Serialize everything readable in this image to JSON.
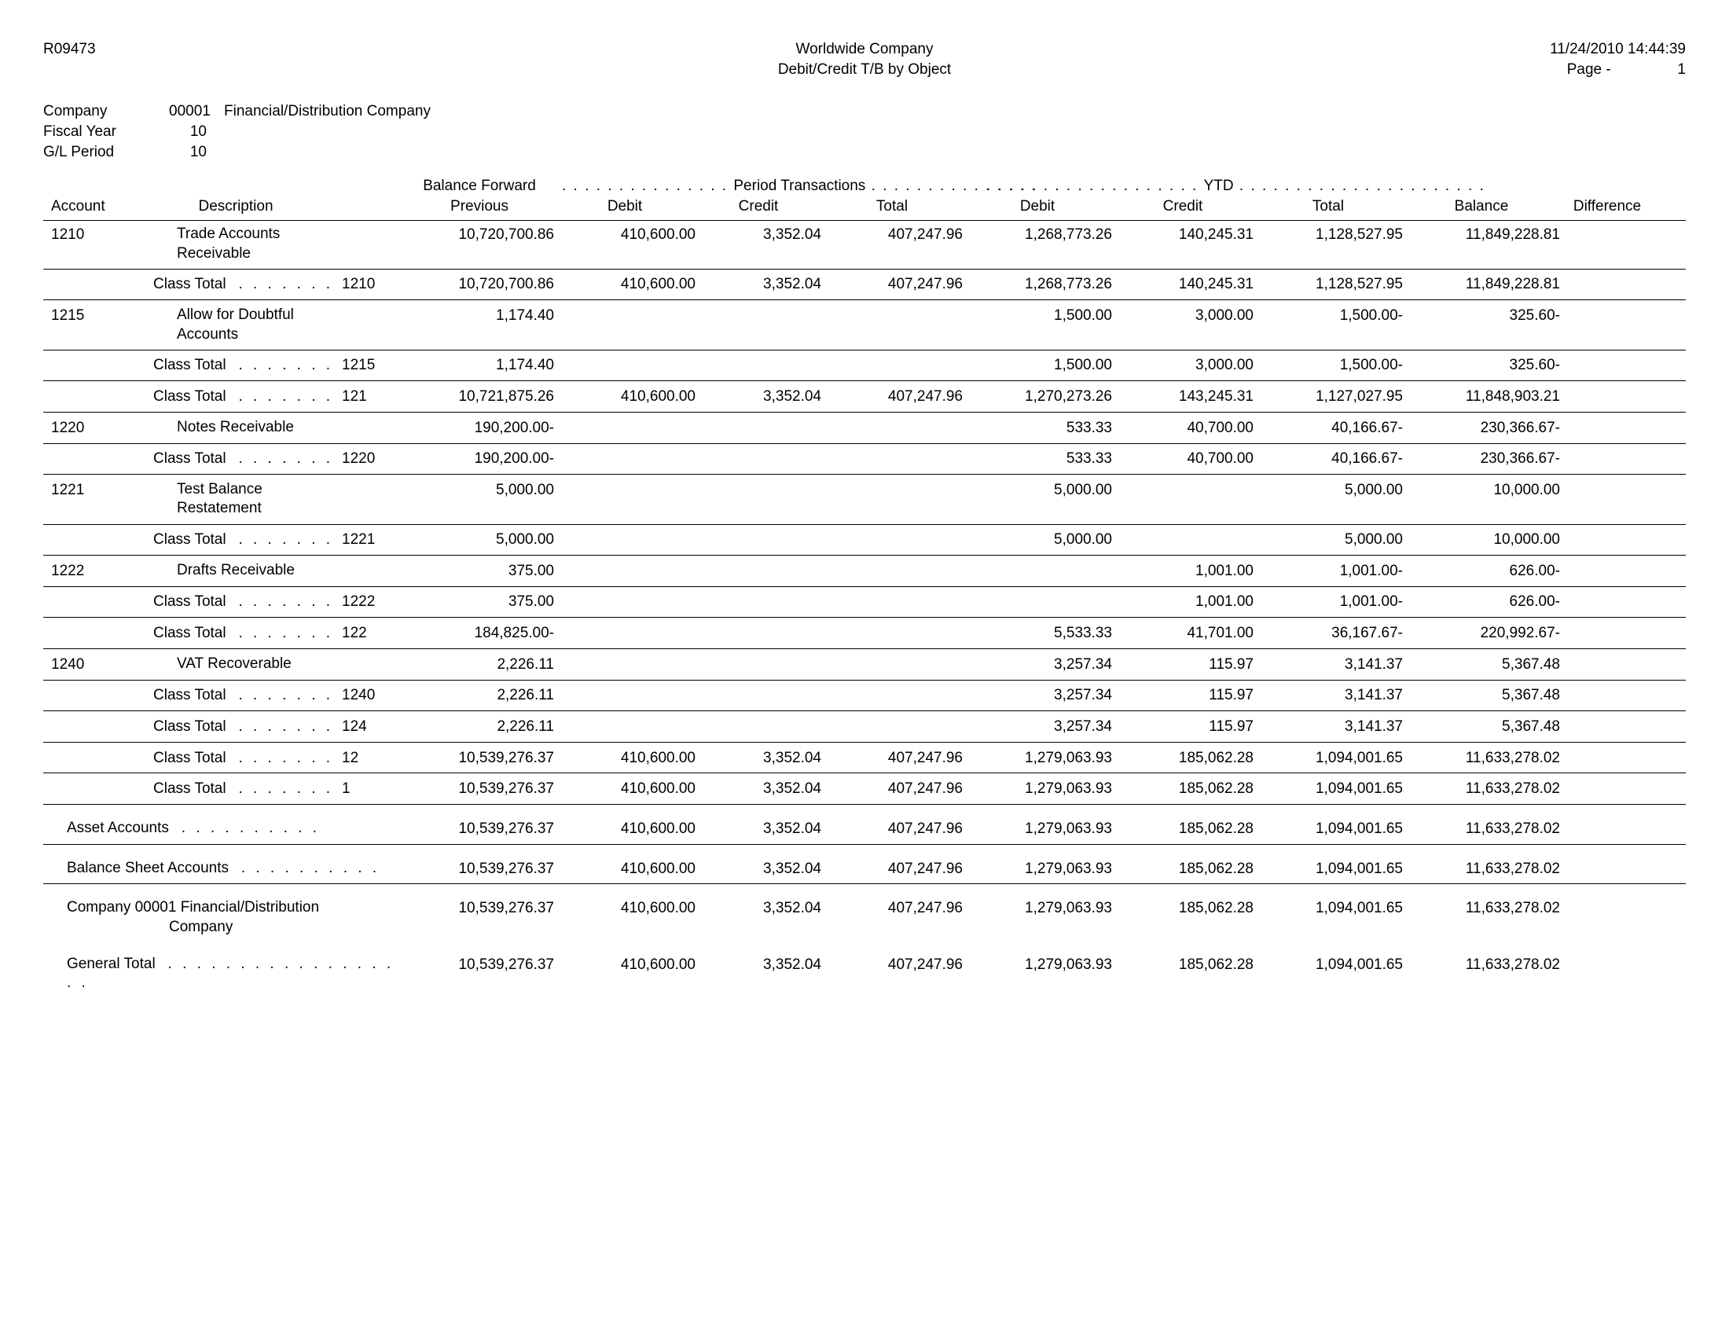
{
  "report_id": "R09473",
  "header_title_1": "Worldwide Company",
  "header_title_2": "Debit/Credit T/B by Object",
  "timestamp": "11/24/2010 14:44:39",
  "page_label": "Page -",
  "page_number": "1",
  "company_label": "Company",
  "company_code": "00001",
  "company_name": "Financial/Distribution Company",
  "fiscal_year_label": "Fiscal Year",
  "fiscal_year": "10",
  "gl_period_label": "G/L Period",
  "gl_period": "10",
  "group_balance_forward": "Balance Forward",
  "group_period": "Period Transactions",
  "group_ytd": "YTD",
  "col_account": "Account",
  "col_description": "Description",
  "col_previous": "Previous",
  "col_debit": "Debit",
  "col_credit": "Credit",
  "col_total": "Total",
  "col_balance": "Balance",
  "col_difference": "Difference",
  "class_total_label": "Class Total",
  "class_total_dots": ". . . . . . .",
  "rows": [
    {
      "type": "detail",
      "account": "1210",
      "desc1": "Trade Accounts",
      "desc2": "Receivable",
      "prev": "10,720,700.86",
      "pd": "410,600.00",
      "pc": "3,352.04",
      "pt": "407,247.96",
      "yd": "1,268,773.26",
      "yc": "140,245.31",
      "yt": "1,128,527.95",
      "bal": "11,849,228.81"
    },
    {
      "type": "class",
      "code": "1210",
      "prev": "10,720,700.86",
      "pd": "410,600.00",
      "pc": "3,352.04",
      "pt": "407,247.96",
      "yd": "1,268,773.26",
      "yc": "140,245.31",
      "yt": "1,128,527.95",
      "bal": "11,849,228.81",
      "sep": "both"
    },
    {
      "type": "detail",
      "account": "1215",
      "desc1": "Allow for Doubtful",
      "desc2": "Accounts",
      "prev": "1,174.40",
      "pd": "",
      "pc": "",
      "pt": "",
      "yd": "1,500.00",
      "yc": "3,000.00",
      "yt": "1,500.00-",
      "bal": "325.60-"
    },
    {
      "type": "class",
      "code": "1215",
      "prev": "1,174.40",
      "pd": "",
      "pc": "",
      "pt": "",
      "yd": "1,500.00",
      "yc": "3,000.00",
      "yt": "1,500.00-",
      "bal": "325.60-",
      "sep": "both"
    },
    {
      "type": "class",
      "code": "121",
      "prev": "10,721,875.26",
      "pd": "410,600.00",
      "pc": "3,352.04",
      "pt": "407,247.96",
      "yd": "1,270,273.26",
      "yc": "143,245.31",
      "yt": "1,127,027.95",
      "bal": "11,848,903.21",
      "sep": "bot"
    },
    {
      "type": "detail",
      "account": "1220",
      "desc1": "Notes Receivable",
      "desc2": "",
      "prev": "190,200.00-",
      "pd": "",
      "pc": "",
      "pt": "",
      "yd": "533.33",
      "yc": "40,700.00",
      "yt": "40,166.67-",
      "bal": "230,366.67-"
    },
    {
      "type": "class",
      "code": "1220",
      "prev": "190,200.00-",
      "pd": "",
      "pc": "",
      "pt": "",
      "yd": "533.33",
      "yc": "40,700.00",
      "yt": "40,166.67-",
      "bal": "230,366.67-",
      "sep": "both"
    },
    {
      "type": "detail",
      "account": "1221",
      "desc1": "Test Balance",
      "desc2": "Restatement",
      "prev": "5,000.00",
      "pd": "",
      "pc": "",
      "pt": "",
      "yd": "5,000.00",
      "yc": "",
      "yt": "5,000.00",
      "bal": "10,000.00"
    },
    {
      "type": "class",
      "code": "1221",
      "prev": "5,000.00",
      "pd": "",
      "pc": "",
      "pt": "",
      "yd": "5,000.00",
      "yc": "",
      "yt": "5,000.00",
      "bal": "10,000.00",
      "sep": "both"
    },
    {
      "type": "detail",
      "account": "1222",
      "desc1": "Drafts Receivable",
      "desc2": "",
      "prev": "375.00",
      "pd": "",
      "pc": "",
      "pt": "",
      "yd": "",
      "yc": "1,001.00",
      "yt": "1,001.00-",
      "bal": "626.00-"
    },
    {
      "type": "class",
      "code": "1222",
      "prev": "375.00",
      "pd": "",
      "pc": "",
      "pt": "",
      "yd": "",
      "yc": "1,001.00",
      "yt": "1,001.00-",
      "bal": "626.00-",
      "sep": "both"
    },
    {
      "type": "class",
      "code": "122",
      "prev": "184,825.00-",
      "pd": "",
      "pc": "",
      "pt": "",
      "yd": "5,533.33",
      "yc": "41,701.00",
      "yt": "36,167.67-",
      "bal": "220,992.67-",
      "sep": "bot"
    },
    {
      "type": "detail",
      "account": "1240",
      "desc1": "VAT Recoverable",
      "desc2": "",
      "prev": "2,226.11",
      "pd": "",
      "pc": "",
      "pt": "",
      "yd": "3,257.34",
      "yc": "115.97",
      "yt": "3,141.37",
      "bal": "5,367.48"
    },
    {
      "type": "class",
      "code": "1240",
      "prev": "2,226.11",
      "pd": "",
      "pc": "",
      "pt": "",
      "yd": "3,257.34",
      "yc": "115.97",
      "yt": "3,141.37",
      "bal": "5,367.48",
      "sep": "both"
    },
    {
      "type": "class",
      "code": "124",
      "prev": "2,226.11",
      "pd": "",
      "pc": "",
      "pt": "",
      "yd": "3,257.34",
      "yc": "115.97",
      "yt": "3,141.37",
      "bal": "5,367.48",
      "sep": "bot"
    },
    {
      "type": "class",
      "code": "12",
      "prev": "10,539,276.37",
      "pd": "410,600.00",
      "pc": "3,352.04",
      "pt": "407,247.96",
      "yd": "1,279,063.93",
      "yc": "185,062.28",
      "yt": "1,094,001.65",
      "bal": "11,633,278.02",
      "sep": "bot"
    },
    {
      "type": "class",
      "code": "1",
      "prev": "10,539,276.37",
      "pd": "410,600.00",
      "pc": "3,352.04",
      "pt": "407,247.96",
      "yd": "1,279,063.93",
      "yc": "185,062.28",
      "yt": "1,094,001.65",
      "bal": "11,633,278.02",
      "sep": "bot"
    }
  ],
  "summaries": [
    {
      "label": "Asset Accounts",
      "dots": ". . . . . . . . . .",
      "prev": "10,539,276.37",
      "pd": "410,600.00",
      "pc": "3,352.04",
      "pt": "407,247.96",
      "yd": "1,279,063.93",
      "yc": "185,062.28",
      "yt": "1,094,001.65",
      "bal": "11,633,278.02",
      "sep": "bot"
    },
    {
      "label": "Balance Sheet Accounts",
      "dots": ". . . . . . . . . .",
      "prev": "10,539,276.37",
      "pd": "410,600.00",
      "pc": "3,352.04",
      "pt": "407,247.96",
      "yd": "1,279,063.93",
      "yc": "185,062.28",
      "yt": "1,094,001.65",
      "bal": "11,633,278.02",
      "sep": "bot"
    },
    {
      "label": "Company 00001 Financial/Distribution",
      "label2": "Company",
      "dots": "",
      "prev": "10,539,276.37",
      "pd": "410,600.00",
      "pc": "3,352.04",
      "pt": "407,247.96",
      "yd": "1,279,063.93",
      "yc": "185,062.28",
      "yt": "1,094,001.65",
      "bal": "11,633,278.02",
      "sep": "none"
    },
    {
      "label": "General Total",
      "dots": ". . . . . . . . . . . . . . . . . .",
      "prev": "10,539,276.37",
      "pd": "410,600.00",
      "pc": "3,352.04",
      "pt": "407,247.96",
      "yd": "1,279,063.93",
      "yc": "185,062.28",
      "yt": "1,094,001.65",
      "bal": "11,633,278.02",
      "sep": "none"
    }
  ]
}
